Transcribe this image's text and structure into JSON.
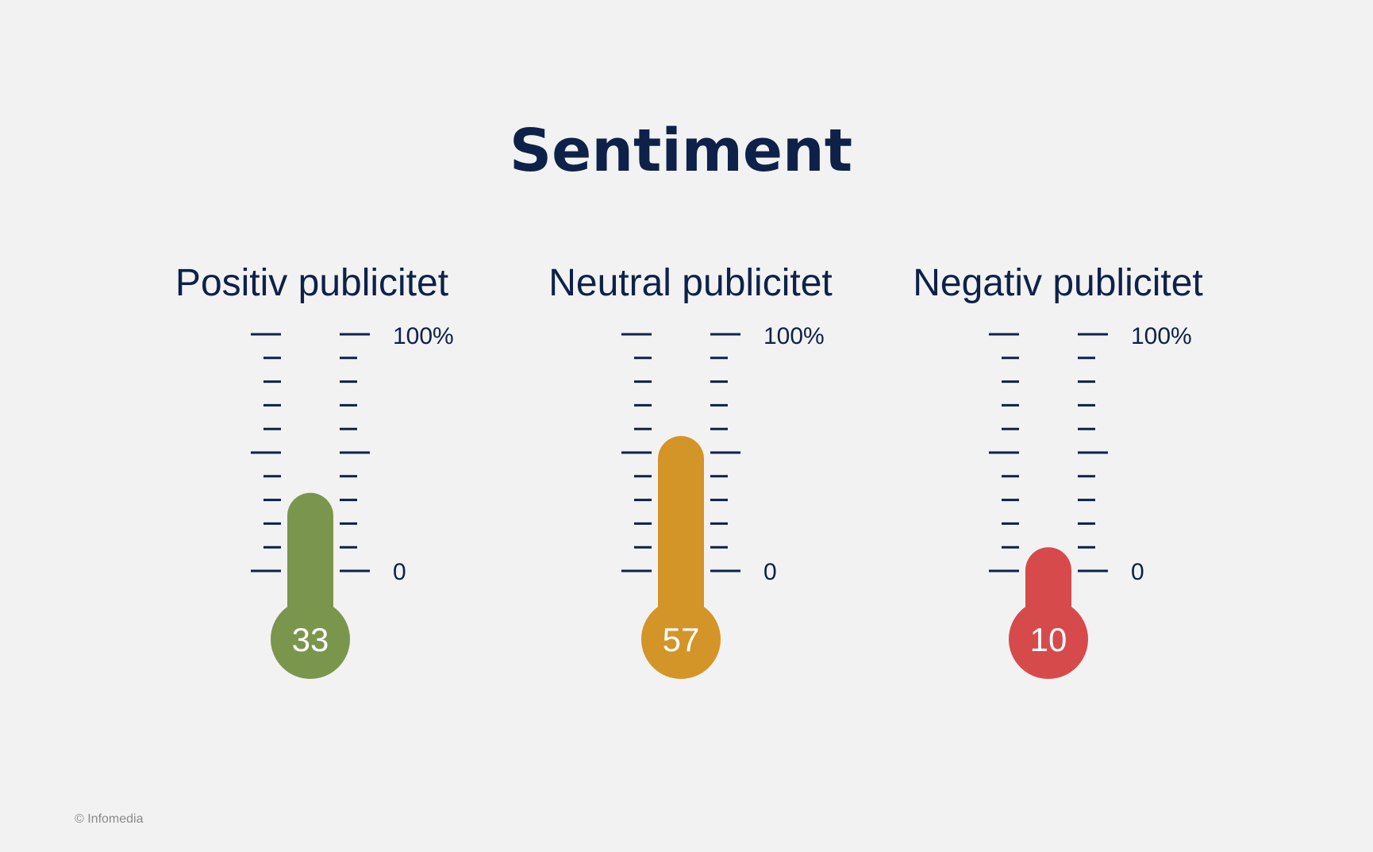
{
  "chart_data": {
    "type": "thermometer",
    "title": "Sentiment",
    "ylim": [
      0,
      100
    ],
    "scale_labels": {
      "min": "0",
      "max": "100%"
    },
    "series": [
      {
        "name": "Positiv publicitet",
        "value": 33,
        "value_label": "33",
        "color": "#7a964d"
      },
      {
        "name": "Neutral publicitet",
        "value": 57,
        "value_label": "57",
        "color": "#d39428"
      },
      {
        "name": "Negativ publicitet",
        "value": 10,
        "value_label": "10",
        "color": "#d64a4b"
      }
    ]
  },
  "footer": {
    "copyright": "© Infomedia"
  },
  "colors": {
    "text": "#0e2149",
    "background": "#f2f2f2"
  }
}
